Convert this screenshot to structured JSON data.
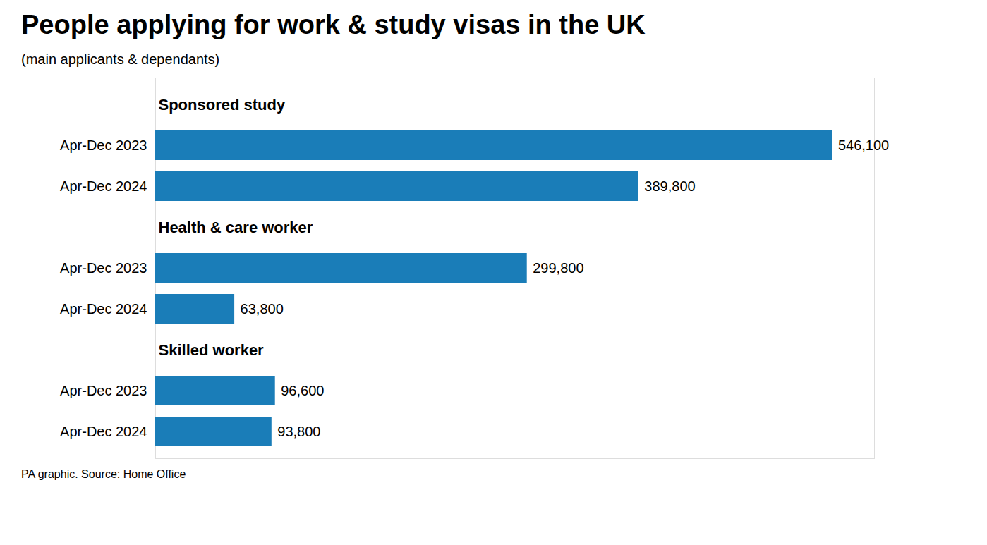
{
  "chart_data": {
    "type": "bar",
    "orientation": "horizontal",
    "title": "People applying for work & study visas in the UK",
    "subtitle": "(main applicants & dependants)",
    "annotations": [
      "PA graphic. Source: Home Office"
    ],
    "categories": [
      "Sponsored study",
      "Health & care worker",
      "Skilled worker"
    ],
    "series": [
      {
        "name": "Apr-Dec 2023",
        "color": "#1a7db8",
        "values": [
          546100,
          299800,
          96600
        ],
        "value_labels": [
          "546,100",
          "299,800",
          "96,600"
        ]
      },
      {
        "name": "Apr-Dec 2024",
        "color": "#1a7db8",
        "values": [
          389800,
          63800,
          93800
        ],
        "value_labels": [
          "389,800",
          "63,800",
          "93,800"
        ]
      }
    ],
    "xlim": [
      0,
      580000
    ],
    "data_labels": true,
    "tick_labels": false,
    "grid": false
  }
}
